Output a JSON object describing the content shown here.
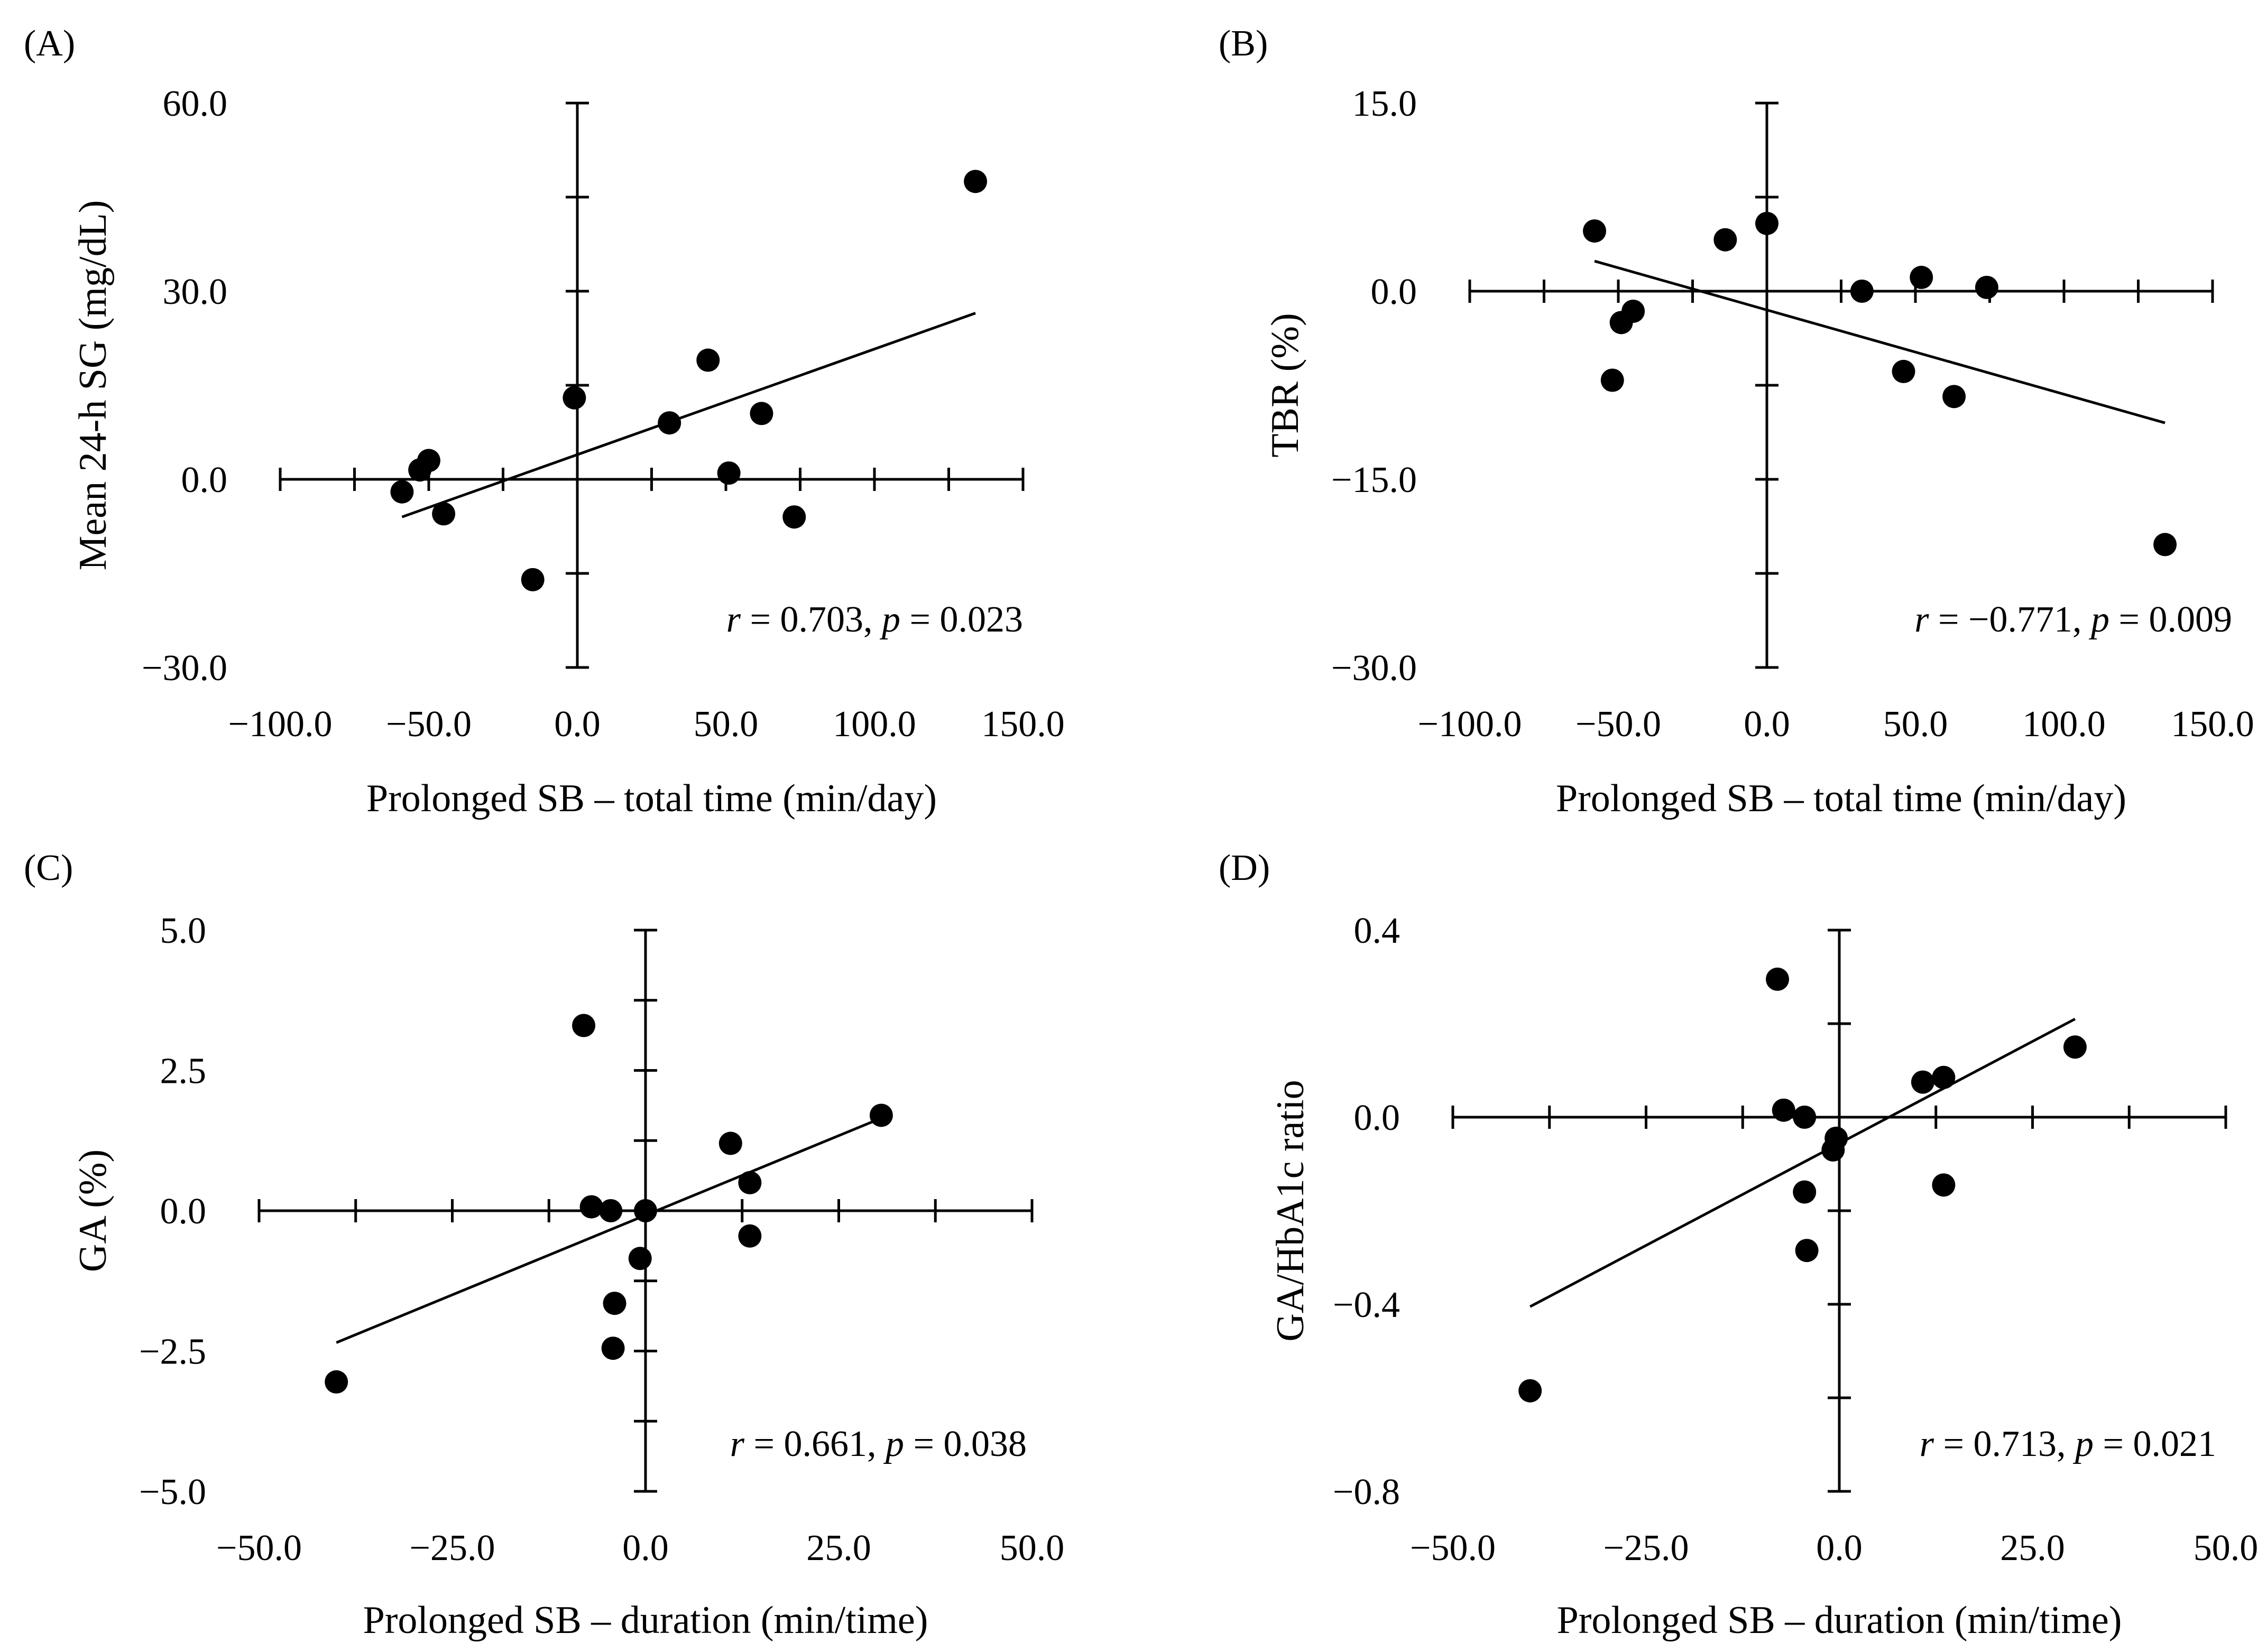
{
  "chart_data": [
    {
      "type": "scatter",
      "panel_label": "(A)",
      "xlabel": "Prolonged SB – total time (min/day)",
      "ylabel": "Mean 24-h SG (mg/dL)",
      "xlim": [
        -100,
        150
      ],
      "ylim": [
        -30,
        60
      ],
      "x_ticks": [
        -100,
        -75,
        -50,
        -25,
        0,
        25,
        50,
        75,
        100,
        125,
        150
      ],
      "x_tick_labels": [
        "−100.0",
        "−50.0",
        "0.0",
        "50.0",
        "100.0",
        "150.0"
      ],
      "x_tick_label_values": [
        -100,
        -50,
        0,
        50,
        100,
        150
      ],
      "y_ticks": [
        -30,
        -15,
        0,
        15,
        30,
        45,
        60
      ],
      "y_tick_labels": [
        "−30.0",
        "0.0",
        "30.0",
        "60.0"
      ],
      "y_tick_label_values": [
        -30,
        0,
        30,
        60
      ],
      "points": [
        {
          "x": -59,
          "y": -2
        },
        {
          "x": -53,
          "y": 1.5
        },
        {
          "x": -50,
          "y": 3
        },
        {
          "x": -45,
          "y": -5.5
        },
        {
          "x": -15,
          "y": -16
        },
        {
          "x": -1,
          "y": 13
        },
        {
          "x": 31,
          "y": 9
        },
        {
          "x": 44,
          "y": 19
        },
        {
          "x": 51,
          "y": 1
        },
        {
          "x": 62,
          "y": 10.5
        },
        {
          "x": 73,
          "y": -6
        },
        {
          "x": 134,
          "y": 47.5
        }
      ],
      "fit_line": {
        "x": [
          -59,
          134
        ],
        "y": [
          -6,
          26.5
        ]
      },
      "annotation": {
        "r_label": "r",
        "r_text": " = 0.703, ",
        "p_label": "p",
        "p_text": " = 0.023"
      }
    },
    {
      "type": "scatter",
      "panel_label": "(B)",
      "xlabel": "Prolonged SB – total time (min/day)",
      "ylabel": "TBR (%)",
      "xlim": [
        -100,
        150
      ],
      "ylim": [
        -30,
        15
      ],
      "x_ticks": [
        -100,
        -75,
        -50,
        -25,
        0,
        25,
        50,
        75,
        100,
        125,
        150
      ],
      "x_tick_labels": [
        "−100.0",
        "−50.0",
        "0.0",
        "50.0",
        "100.0",
        "150.0"
      ],
      "x_tick_label_values": [
        -100,
        -50,
        0,
        50,
        100,
        150
      ],
      "y_ticks": [
        -30,
        -22.5,
        -15,
        -7.5,
        0,
        7.5,
        15
      ],
      "y_tick_labels": [
        "−30.0",
        "−15.0",
        "0.0",
        "15.0"
      ],
      "y_tick_label_values": [
        -30,
        -15,
        0,
        15
      ],
      "points": [
        {
          "x": -58,
          "y": 4.8
        },
        {
          "x": -49,
          "y": -2.5
        },
        {
          "x": -45,
          "y": -1.6
        },
        {
          "x": -52,
          "y": -7.1
        },
        {
          "x": -14,
          "y": 4.1
        },
        {
          "x": 0,
          "y": 5.4
        },
        {
          "x": 32,
          "y": 0
        },
        {
          "x": 46,
          "y": -6.4
        },
        {
          "x": 52,
          "y": 1.1
        },
        {
          "x": 63,
          "y": -8.4
        },
        {
          "x": 74,
          "y": 0.3
        },
        {
          "x": 134,
          "y": -20.2
        }
      ],
      "fit_line": {
        "x": [
          -58,
          134
        ],
        "y": [
          2.4,
          -10.5
        ]
      },
      "annotation": {
        "r_label": "r",
        "r_text": " = −0.771, ",
        "p_label": "p",
        "p_text": " = 0.009"
      }
    },
    {
      "type": "scatter",
      "panel_label": "(C)",
      "xlabel": "Prolonged SB – duration (min/time)",
      "ylabel": "GA (%)",
      "xlim": [
        -50,
        50
      ],
      "ylim": [
        -5,
        5
      ],
      "x_ticks": [
        -50,
        -37.5,
        -25,
        -12.5,
        0,
        12.5,
        25,
        37.5,
        50
      ],
      "x_tick_labels": [
        "−50.0",
        "−25.0",
        "0.0",
        "25.0",
        "50.0"
      ],
      "x_tick_label_values": [
        -50,
        -25,
        0,
        25,
        50
      ],
      "y_ticks": [
        -5,
        -3.75,
        -2.5,
        -1.25,
        0,
        1.25,
        2.5,
        3.75,
        5
      ],
      "y_tick_labels": [
        "−5.0",
        "−2.5",
        "0.0",
        "2.5",
        "5.0"
      ],
      "y_tick_label_values": [
        -5,
        -2.5,
        0,
        2.5,
        5
      ],
      "points": [
        {
          "x": -40,
          "y": -3.05
        },
        {
          "x": -8,
          "y": 3.3
        },
        {
          "x": -7,
          "y": 0.07
        },
        {
          "x": -4.5,
          "y": 0
        },
        {
          "x": -4,
          "y": -1.65
        },
        {
          "x": -4.2,
          "y": -2.45
        },
        {
          "x": -0.7,
          "y": -0.85
        },
        {
          "x": 0,
          "y": 0
        },
        {
          "x": 11,
          "y": 1.2
        },
        {
          "x": 13.5,
          "y": 0.5
        },
        {
          "x": 13.5,
          "y": -0.45
        },
        {
          "x": 30.5,
          "y": 1.7
        }
      ],
      "fit_line": {
        "x": [
          -40,
          30.5
        ],
        "y": [
          -2.35,
          1.65
        ]
      },
      "annotation": {
        "r_label": "r",
        "r_text": " = 0.661, ",
        "p_label": "p",
        "p_text": " = 0.038"
      }
    },
    {
      "type": "scatter",
      "panel_label": "(D)",
      "xlabel": "Prolonged SB – duration (min/time)",
      "ylabel": "GA/HbA1c ratio",
      "xlim": [
        -50,
        50
      ],
      "ylim": [
        -0.8,
        0.4
      ],
      "x_ticks": [
        -50,
        -37.5,
        -25,
        -12.5,
        0,
        12.5,
        25,
        37.5,
        50
      ],
      "x_tick_labels": [
        "−50.0",
        "−25.0",
        "0.0",
        "25.0",
        "50.0"
      ],
      "x_tick_label_values": [
        -50,
        -25,
        0,
        25,
        50
      ],
      "y_ticks": [
        -0.8,
        -0.6,
        -0.4,
        -0.2,
        0,
        0.2,
        0.4
      ],
      "y_tick_labels": [
        "−0.8",
        "−0.4",
        "0.0",
        "0.4"
      ],
      "y_tick_label_values": [
        -0.8,
        -0.4,
        0,
        0.4
      ],
      "points": [
        {
          "x": -40,
          "y": -0.585
        },
        {
          "x": -8,
          "y": 0.295
        },
        {
          "x": -7.2,
          "y": 0.015
        },
        {
          "x": -4.5,
          "y": 0
        },
        {
          "x": -4.5,
          "y": -0.16
        },
        {
          "x": -4.2,
          "y": -0.285
        },
        {
          "x": -0.8,
          "y": -0.07
        },
        {
          "x": -0.4,
          "y": -0.045
        },
        {
          "x": 10.8,
          "y": 0.075
        },
        {
          "x": 13.5,
          "y": 0.085
        },
        {
          "x": 13.5,
          "y": -0.145
        },
        {
          "x": 30.5,
          "y": 0.15
        }
      ],
      "fit_line": {
        "x": [
          -40,
          30.5
        ],
        "y": [
          -0.405,
          0.21
        ]
      },
      "annotation": {
        "r_label": "r",
        "r_text": " = 0.713, ",
        "p_label": "p",
        "p_text": " = 0.021"
      }
    }
  ]
}
